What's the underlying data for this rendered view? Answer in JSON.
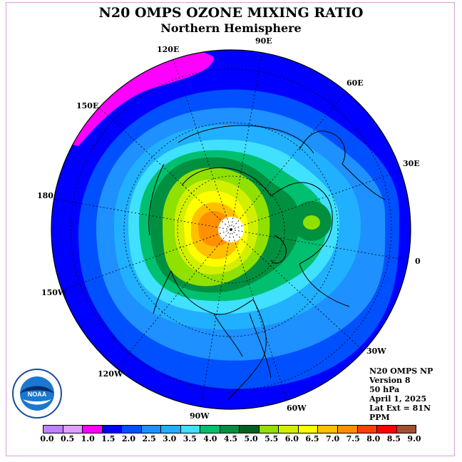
{
  "title": "N20 OMPS OZONE MIXING RATIO",
  "subtitle": "Northern Hemisphere",
  "lon_labels": {
    "e90": "90E",
    "e120": "120E",
    "e60": "60E",
    "e150": "150E",
    "e30": "30E",
    "d180": "180",
    "d0": "0",
    "w150": "150W",
    "w30": "30W",
    "w120": "120W",
    "w60": "60W",
    "w90": "90W"
  },
  "info": {
    "line1": "N20 OMPS NP",
    "line2": "Version 8",
    "line3": "50 hPa",
    "line4": "April 1, 2025",
    "line5": "Lat Ext = 81N",
    "line6": "PPM"
  },
  "legend": {
    "ticks": [
      "0.0",
      "0.5",
      "1.0",
      "1.5",
      "2.0",
      "2.5",
      "3.0",
      "3.5",
      "4.0",
      "4.5",
      "5.0",
      "5.5",
      "6.0",
      "6.5",
      "7.0",
      "7.5",
      "8.0",
      "8.5",
      "9.0"
    ],
    "colors": [
      "#c080ff",
      "#e0a0ff",
      "#ff00ff",
      "#0000ff",
      "#0050ff",
      "#1e90ff",
      "#20b0ff",
      "#40e0ff",
      "#00c070",
      "#009040",
      "#006020",
      "#90e000",
      "#d0f000",
      "#ffff00",
      "#ffc000",
      "#ff9000",
      "#ff4000",
      "#ff0000",
      "#a05030"
    ]
  },
  "colors": {
    "deep_blue": "#0000ff",
    "mid_blue": "#0050ff",
    "light_blue": "#1e90ff",
    "sky_blue": "#20b0ff",
    "cyan": "#40e0ff",
    "green": "#00c070",
    "dark_green": "#009040",
    "yellow_green": "#90e000",
    "lime": "#d0f000",
    "yellow": "#ffff00",
    "orange": "#ffc000",
    "deep_orange": "#ff9000",
    "magenta": "#ff00ff"
  },
  "logo": {
    "text": "NOAA"
  }
}
